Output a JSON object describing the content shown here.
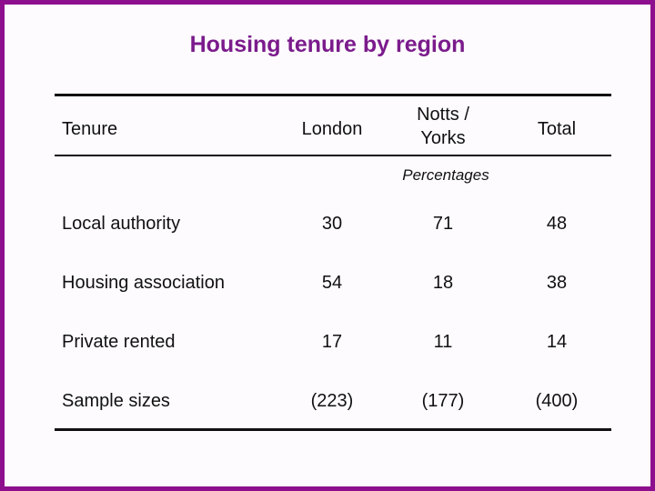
{
  "header": {
    "title": "Housing tenure by region"
  },
  "table": {
    "columns": [
      "Tenure",
      "London",
      "Notts / Yorks",
      "Total"
    ],
    "units": "Percentages",
    "rows": [
      [
        "Local authority",
        "30",
        "71",
        "48"
      ],
      [
        "Housing association",
        "54",
        "18",
        "38"
      ],
      [
        "Private rented",
        "17",
        "11",
        "14"
      ],
      [
        "Sample sizes",
        "(223)",
        "(177)",
        "(400)"
      ]
    ]
  }
}
